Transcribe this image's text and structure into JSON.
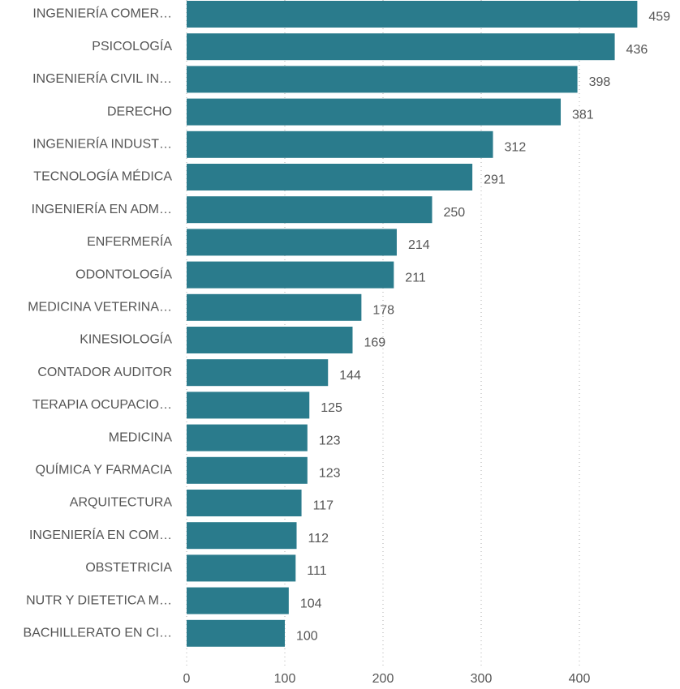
{
  "chart_data": {
    "type": "bar",
    "orientation": "horizontal",
    "categories": [
      "INGENIERÍA COMER…",
      "PSICOLOGÍA",
      "INGENIERÍA CIVIL IN…",
      "DERECHO",
      "INGENIERÍA INDUST…",
      "TECNOLOGÍA MÉDICA",
      "INGENIERÍA EN ADM…",
      "ENFERMERÍA",
      "ODONTOLOGÍA",
      "MEDICINA VETERINA…",
      "KINESIOLOGÍA",
      "CONTADOR AUDITOR",
      "TERAPIA OCUPACIO…",
      "MEDICINA",
      "QUÍMICA Y FARMACIA",
      "ARQUITECTURA",
      "INGENIERÍA EN COM…",
      "OBSTETRICIA",
      "NUTR Y DIETETICA M…",
      "BACHILLERATO EN CI…"
    ],
    "values": [
      459,
      436,
      398,
      381,
      312,
      291,
      250,
      214,
      211,
      178,
      169,
      144,
      125,
      123,
      123,
      117,
      112,
      111,
      104,
      100
    ],
    "color": "#2a7b8c",
    "xlim": [
      0,
      500
    ],
    "xticks": [
      0,
      100,
      200,
      300,
      400
    ],
    "grid": true
  }
}
